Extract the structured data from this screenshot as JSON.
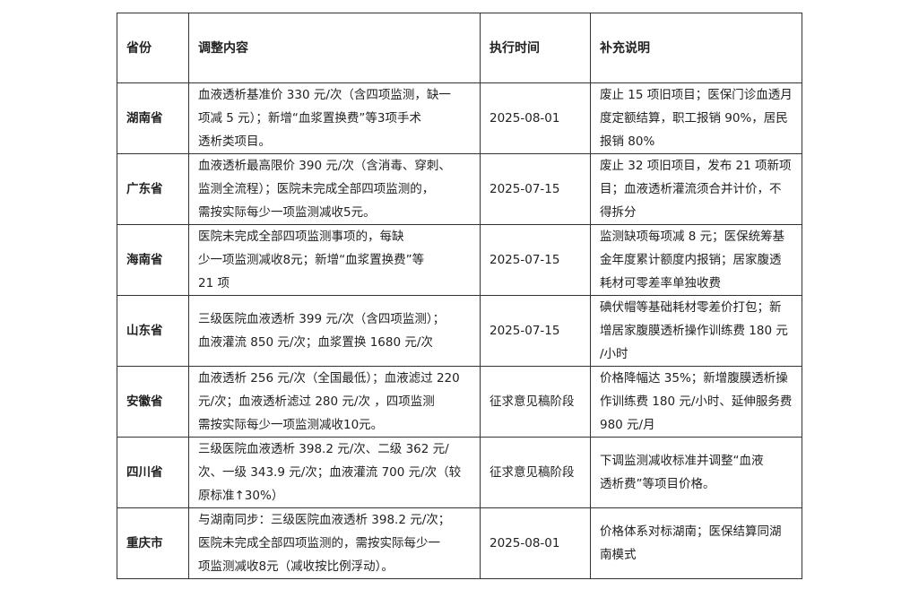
{
  "table": {
    "headers": [
      "省份",
      "调整内容",
      "执行时间",
      "补充说明"
    ],
    "rows": [
      {
        "province": "湖南省",
        "content": [
          "血液透析基准价 330 元/次（含四项监测，缺一",
          "项减 5 元）；新增“血浆置换费”等3项手术",
          "透析类项目。"
        ],
        "date": "2025-08-01",
        "note": [
          "废止 15 项旧项目；医保门诊血透月",
          "度定额结算，职工报销 90%，居民",
          "报销 80%"
        ]
      },
      {
        "province": "广东省",
        "content": [
          "血液透析最高限价 390 元/次（含消毒、穿刺、",
          "监测全流程）；医院未完成全部四项监测的，",
          "需按实际每少一项监测减收5元。"
        ],
        "date": "2025-07-15",
        "note": [
          "废止 32 项旧项目，发布 21 项新项",
          "目；血液透析灌流须合并计价，不",
          "得拆分"
        ]
      },
      {
        "province": "海南省",
        "content": [
          "医院未完成全部四项监测事项的，每缺",
          "少一项监测减收8元；新增“血浆置换费”等",
          "21 项"
        ],
        "date": "2025-07-15",
        "note": [
          "监测缺项每项减 8 元；医保统筹基",
          "金年度累计额度内报销；居家腹透",
          "耗材可零差率单独收费"
        ]
      },
      {
        "province": "山东省",
        "content": [
          "三级医院血液透析 399 元/次（含四项监测）；",
          "血液灌流 850 元/次；血浆置换 1680 元/次"
        ],
        "date": "2025-07-15",
        "note": [
          "碘伏帽等基础耗材零差价打包；新",
          "增居家腹膜透析操作训练费 180 元",
          "/小时"
        ]
      },
      {
        "province": "安徽省",
        "content": [
          "血液透析 256 元/次（全国最低）；血液滤过 220",
          "元/次；血液透析滤过 280 元/次 ，四项监测",
          "需按实际每少一项监测减收10元。"
        ],
        "date": "征求意见稿阶段",
        "note": [
          "价格降幅达 35%；新增腹膜透析操",
          "作训练费 180 元/小时、延伸服务费",
          "980 元/月"
        ]
      },
      {
        "province": "四川省",
        "content": [
          "三级医院血液透析 398.2 元/次、二级 362 元/",
          "次、一级 343.9 元/次；血液灌流 700 元/次（较",
          "原标准↑30%）"
        ],
        "date": "征求意见稿阶段",
        "note": [
          "下调监测减收标准并调整“血液",
          "透析费”等项目价格。"
        ]
      },
      {
        "province": "重庆市",
        "content": [
          "与湖南同步：三级医院血液透析 398.2 元/次；",
          "医院未完成全部四项监测的，需按实际每少一",
          "项监测减收8元（减收按比例浮动）。"
        ],
        "date": "2025-08-01",
        "note": [
          "价格体系对标湖南；医保结算同湖",
          "南模式"
        ]
      }
    ]
  }
}
